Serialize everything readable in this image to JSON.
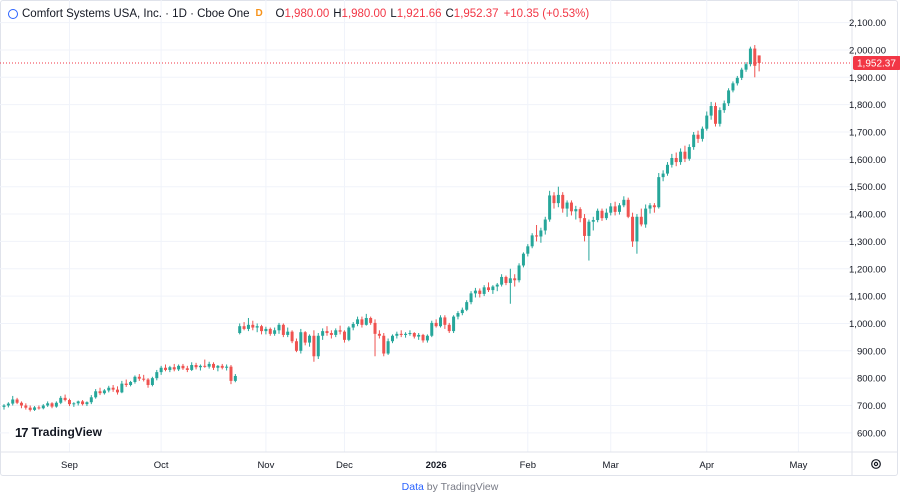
{
  "legend": {
    "title": "Comfort Systems USA, Inc. · 1D · Cboe One",
    "badge": "D",
    "open_label": "O",
    "open": "1,980.00",
    "high_label": "H",
    "high": "1,980.00",
    "low_label": "L",
    "low": "1,921.66",
    "close_label": "C",
    "close": "1,952.37",
    "change": "+10.35 (+0.53%)"
  },
  "logo": {
    "mark": "17",
    "text": "TradingView"
  },
  "footer": {
    "data": "Data",
    "by": "by TradingView"
  },
  "colors": {
    "up": "#26a69a",
    "down": "#ef5350",
    "grid": "#f0f3fa",
    "price_line": "#f23645",
    "axis_text": "#131722"
  },
  "chart_data": {
    "type": "candlestick",
    "y_ticks": [
      {
        "value": 600,
        "label": "600.00"
      },
      {
        "value": 700,
        "label": "700.00"
      },
      {
        "value": 800,
        "label": "800.00"
      },
      {
        "value": 900,
        "label": "900.00"
      },
      {
        "value": 1000,
        "label": "1,000.00"
      },
      {
        "value": 1100,
        "label": "1,100.00"
      },
      {
        "value": 1200,
        "label": "1,200.00"
      },
      {
        "value": 1300,
        "label": "1,300.00"
      },
      {
        "value": 1400,
        "label": "1,400.00"
      },
      {
        "value": 1500,
        "label": "1,500.00"
      },
      {
        "value": 1600,
        "label": "1,600.00"
      },
      {
        "value": 1700,
        "label": "1,700.00"
      },
      {
        "value": 1800,
        "label": "1,800.00"
      },
      {
        "value": 1900,
        "label": "1,900.00"
      },
      {
        "value": 2000,
        "label": "2,000.00"
      },
      {
        "value": 2100,
        "label": "2,100.00"
      }
    ],
    "x_ticks": [
      {
        "index": 15,
        "label": "Sep"
      },
      {
        "index": 36,
        "label": "Oct"
      },
      {
        "index": 60,
        "label": "Nov"
      },
      {
        "index": 78,
        "label": "Dec"
      },
      {
        "index": 99,
        "label": "2026"
      },
      {
        "index": 120,
        "label": "Feb"
      },
      {
        "index": 139,
        "label": "Mar"
      },
      {
        "index": 161,
        "label": "Apr"
      },
      {
        "index": 182,
        "label": "May"
      }
    ],
    "last_price": {
      "value": 1952.37,
      "label": "1,952.37"
    },
    "ohlc": [
      [
        695,
        705,
        685,
        700
      ],
      [
        700,
        712,
        693,
        707
      ],
      [
        707,
        735,
        700,
        722
      ],
      [
        722,
        728,
        705,
        710
      ],
      [
        710,
        715,
        690,
        700
      ],
      [
        700,
        708,
        685,
        692
      ],
      [
        692,
        700,
        678,
        684
      ],
      [
        684,
        698,
        680,
        693
      ],
      [
        693,
        700,
        685,
        690
      ],
      [
        690,
        705,
        686,
        700
      ],
      [
        700,
        715,
        695,
        708
      ],
      [
        708,
        712,
        690,
        696
      ],
      [
        696,
        715,
        692,
        710
      ],
      [
        710,
        735,
        705,
        728
      ],
      [
        728,
        740,
        715,
        720
      ],
      [
        720,
        725,
        698,
        705
      ],
      [
        705,
        712,
        695,
        708
      ],
      [
        708,
        718,
        700,
        715
      ],
      [
        715,
        720,
        700,
        705
      ],
      [
        705,
        715,
        698,
        712
      ],
      [
        712,
        738,
        705,
        730
      ],
      [
        730,
        760,
        725,
        752
      ],
      [
        752,
        765,
        738,
        745
      ],
      [
        745,
        760,
        740,
        755
      ],
      [
        755,
        772,
        748,
        765
      ],
      [
        765,
        775,
        750,
        758
      ],
      [
        758,
        770,
        740,
        748
      ],
      [
        748,
        790,
        745,
        780
      ],
      [
        780,
        795,
        768,
        775
      ],
      [
        775,
        790,
        770,
        786
      ],
      [
        786,
        810,
        780,
        805
      ],
      [
        805,
        815,
        790,
        798
      ],
      [
        798,
        812,
        788,
        795
      ],
      [
        795,
        800,
        765,
        775
      ],
      [
        775,
        805,
        770,
        800
      ],
      [
        800,
        830,
        792,
        822
      ],
      [
        822,
        845,
        812,
        838
      ],
      [
        838,
        850,
        825,
        830
      ],
      [
        830,
        845,
        822,
        840
      ],
      [
        840,
        852,
        825,
        832
      ],
      [
        832,
        850,
        826,
        845
      ],
      [
        845,
        852,
        830,
        836
      ],
      [
        836,
        845,
        822,
        830
      ],
      [
        830,
        858,
        826,
        848
      ],
      [
        848,
        856,
        832,
        840
      ],
      [
        840,
        850,
        828,
        845
      ],
      [
        845,
        868,
        838,
        842
      ],
      [
        842,
        860,
        835,
        852
      ],
      [
        852,
        858,
        830,
        838
      ],
      [
        838,
        848,
        825,
        845
      ],
      [
        845,
        852,
        832,
        838
      ],
      [
        838,
        850,
        828,
        842
      ],
      [
        842,
        848,
        778,
        790
      ],
      [
        790,
        815,
        785,
        808
      ],
      [
        965,
        1000,
        960,
        990
      ],
      [
        990,
        1005,
        975,
        980
      ],
      [
        980,
        1020,
        972,
        995
      ],
      [
        995,
        1010,
        975,
        985
      ],
      [
        985,
        1000,
        968,
        990
      ],
      [
        990,
        995,
        960,
        972
      ],
      [
        972,
        988,
        960,
        980
      ],
      [
        980,
        985,
        955,
        962
      ],
      [
        962,
        985,
        955,
        975
      ],
      [
        975,
        1002,
        962,
        995
      ],
      [
        995,
        1000,
        950,
        958
      ],
      [
        958,
        985,
        950,
        970
      ],
      [
        970,
        975,
        928,
        935
      ],
      [
        935,
        945,
        895,
        900
      ],
      [
        900,
        980,
        890,
        968
      ],
      [
        968,
        972,
        920,
        930
      ],
      [
        930,
        960,
        915,
        955
      ],
      [
        955,
        975,
        860,
        880
      ],
      [
        880,
        965,
        870,
        955
      ],
      [
        955,
        982,
        940,
        972
      ],
      [
        972,
        990,
        955,
        965
      ],
      [
        965,
        975,
        945,
        958
      ],
      [
        958,
        982,
        950,
        975
      ],
      [
        975,
        992,
        960,
        970
      ],
      [
        970,
        975,
        930,
        940
      ],
      [
        940,
        990,
        935,
        985
      ],
      [
        985,
        1005,
        975,
        998
      ],
      [
        998,
        1025,
        990,
        1015
      ],
      [
        1015,
        1025,
        985,
        995
      ],
      [
        995,
        1035,
        992,
        1020
      ],
      [
        1020,
        1025,
        995,
        1002
      ],
      [
        1002,
        1015,
        880,
        962
      ],
      [
        962,
        975,
        945,
        955
      ],
      [
        955,
        965,
        880,
        890
      ],
      [
        890,
        945,
        885,
        935
      ],
      [
        935,
        960,
        928,
        955
      ],
      [
        955,
        970,
        945,
        962
      ],
      [
        962,
        975,
        950,
        958
      ],
      [
        958,
        968,
        948,
        962
      ],
      [
        962,
        975,
        955,
        965
      ],
      [
        965,
        968,
        945,
        952
      ],
      [
        952,
        965,
        940,
        958
      ],
      [
        958,
        962,
        930,
        938
      ],
      [
        938,
        960,
        930,
        955
      ],
      [
        955,
        1010,
        950,
        1002
      ],
      [
        1002,
        1015,
        985,
        990
      ],
      [
        990,
        1030,
        985,
        1022
      ],
      [
        1022,
        1030,
        980,
        995
      ],
      [
        995,
        1002,
        965,
        972
      ],
      [
        972,
        1030,
        965,
        1025
      ],
      [
        1025,
        1045,
        1015,
        1038
      ],
      [
        1038,
        1058,
        1030,
        1050
      ],
      [
        1050,
        1085,
        1045,
        1078
      ],
      [
        1078,
        1118,
        1070,
        1110
      ],
      [
        1110,
        1130,
        1095,
        1120
      ],
      [
        1120,
        1128,
        1095,
        1108
      ],
      [
        1108,
        1140,
        1100,
        1132
      ],
      [
        1132,
        1150,
        1115,
        1122
      ],
      [
        1122,
        1140,
        1108,
        1135
      ],
      [
        1135,
        1148,
        1118,
        1142
      ],
      [
        1142,
        1180,
        1135,
        1170
      ],
      [
        1170,
        1175,
        1140,
        1148
      ],
      [
        1148,
        1200,
        1072,
        1165
      ],
      [
        1165,
        1180,
        1135,
        1158
      ],
      [
        1158,
        1220,
        1150,
        1212
      ],
      [
        1212,
        1260,
        1205,
        1255
      ],
      [
        1255,
        1290,
        1245,
        1282
      ],
      [
        1282,
        1330,
        1275,
        1322
      ],
      [
        1322,
        1360,
        1300,
        1318
      ],
      [
        1318,
        1350,
        1295,
        1340
      ],
      [
        1340,
        1390,
        1325,
        1380
      ],
      [
        1380,
        1485,
        1372,
        1468
      ],
      [
        1468,
        1480,
        1420,
        1440
      ],
      [
        1440,
        1500,
        1425,
        1470
      ],
      [
        1470,
        1480,
        1405,
        1420
      ],
      [
        1420,
        1450,
        1390,
        1442
      ],
      [
        1442,
        1450,
        1395,
        1410
      ],
      [
        1410,
        1430,
        1380,
        1418
      ],
      [
        1418,
        1425,
        1370,
        1385
      ],
      [
        1385,
        1400,
        1300,
        1320
      ],
      [
        1320,
        1380,
        1230,
        1372
      ],
      [
        1372,
        1390,
        1340,
        1378
      ],
      [
        1378,
        1420,
        1370,
        1412
      ],
      [
        1412,
        1420,
        1375,
        1385
      ],
      [
        1385,
        1420,
        1378,
        1405
      ],
      [
        1405,
        1440,
        1395,
        1428
      ],
      [
        1428,
        1445,
        1395,
        1408
      ],
      [
        1408,
        1440,
        1398,
        1432
      ],
      [
        1432,
        1465,
        1425,
        1452
      ],
      [
        1452,
        1460,
        1385,
        1390
      ],
      [
        1390,
        1405,
        1280,
        1300
      ],
      [
        1300,
        1400,
        1255,
        1390
      ],
      [
        1390,
        1420,
        1355,
        1362
      ],
      [
        1362,
        1435,
        1350,
        1420
      ],
      [
        1420,
        1440,
        1402,
        1432
      ],
      [
        1432,
        1440,
        1405,
        1425
      ],
      [
        1425,
        1550,
        1420,
        1535
      ],
      [
        1535,
        1560,
        1520,
        1548
      ],
      [
        1548,
        1590,
        1540,
        1580
      ],
      [
        1580,
        1620,
        1570,
        1605
      ],
      [
        1605,
        1625,
        1575,
        1590
      ],
      [
        1590,
        1640,
        1580,
        1628
      ],
      [
        1628,
        1650,
        1590,
        1602
      ],
      [
        1602,
        1655,
        1595,
        1645
      ],
      [
        1645,
        1700,
        1635,
        1690
      ],
      [
        1690,
        1705,
        1660,
        1675
      ],
      [
        1675,
        1720,
        1665,
        1712
      ],
      [
        1712,
        1775,
        1705,
        1760
      ],
      [
        1760,
        1810,
        1745,
        1795
      ],
      [
        1795,
        1808,
        1720,
        1730
      ],
      [
        1730,
        1790,
        1720,
        1780
      ],
      [
        1780,
        1815,
        1770,
        1805
      ],
      [
        1805,
        1860,
        1795,
        1852
      ],
      [
        1852,
        1885,
        1845,
        1878
      ],
      [
        1878,
        1905,
        1870,
        1898
      ],
      [
        1898,
        1935,
        1890,
        1928
      ],
      [
        1928,
        1955,
        1920,
        1948
      ],
      [
        1948,
        2012,
        1940,
        2005
      ],
      [
        2005,
        2018,
        1900,
        1942
      ],
      [
        1980,
        1980,
        1921.66,
        1952.37
      ]
    ]
  }
}
